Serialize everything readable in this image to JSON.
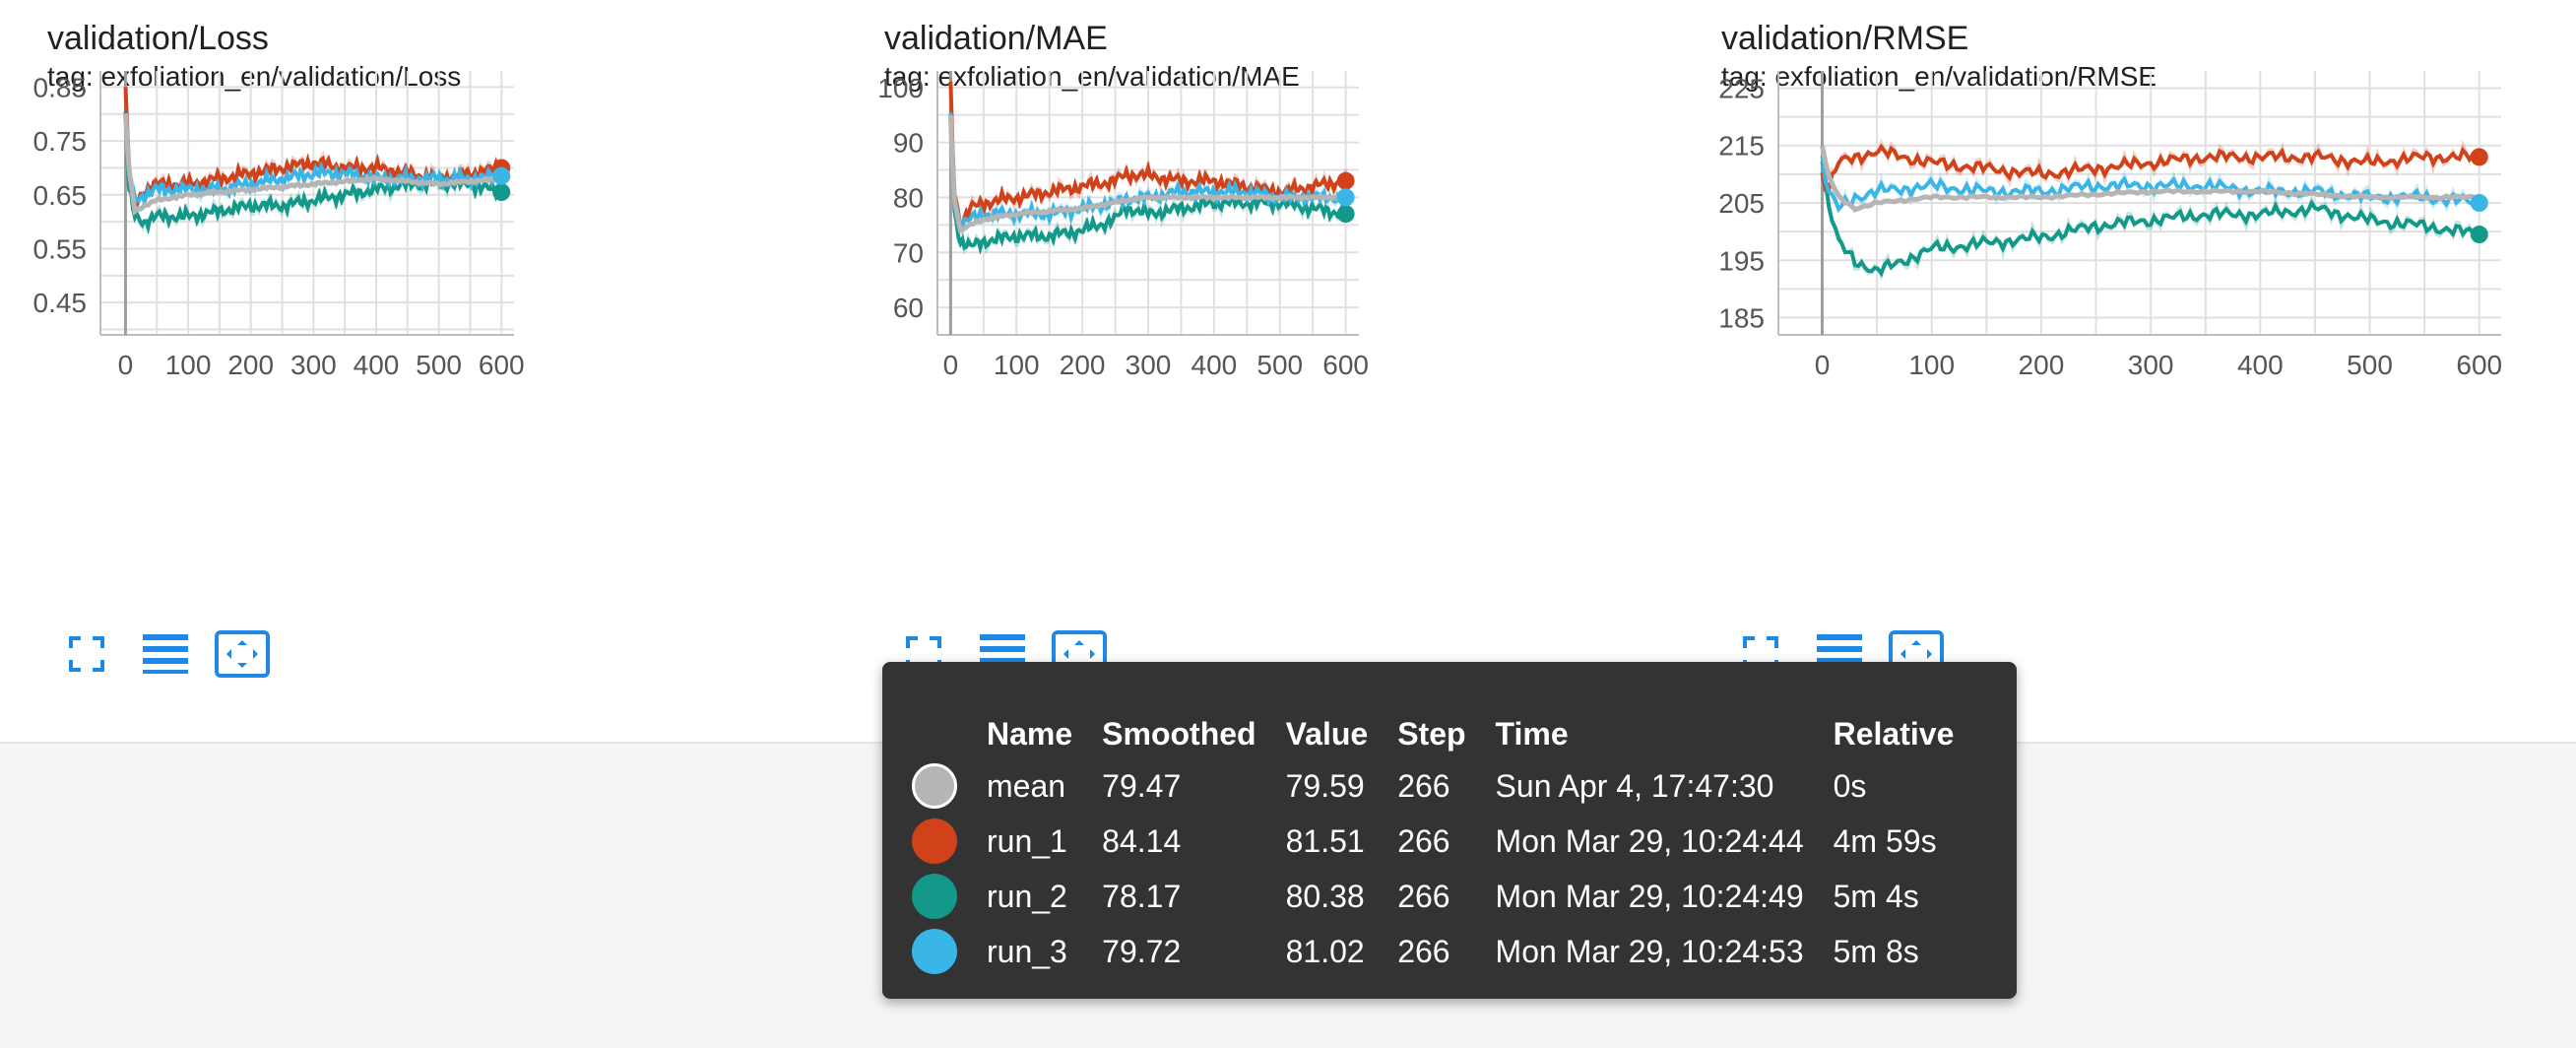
{
  "colors": {
    "mean": "#b5b5b5",
    "run_1": "#d1421b",
    "run_2": "#13998a",
    "run_3": "#3ab5e7",
    "accent": "#1e88e5"
  },
  "toolbar_icons": [
    "fullscreen-icon",
    "data-list-icon",
    "fit-domain-icon"
  ],
  "chart_data": [
    {
      "type": "line",
      "title": "validation/Loss",
      "tag": "tag: exfoliation_en/validation/Loss",
      "xlim": [
        -40,
        620
      ],
      "ylim": [
        0.39,
        0.88
      ],
      "xticks": [
        0,
        100,
        200,
        300,
        400,
        500,
        600
      ],
      "xtick_labels": [
        "0",
        "100",
        "200",
        "300",
        "400",
        "500",
        "600"
      ],
      "yticks": [
        0.85,
        0.75,
        0.65,
        0.55,
        0.45
      ],
      "ytick_labels": [
        "0.85",
        "0.75",
        "0.65",
        "0.55",
        "0.45"
      ],
      "grid": true,
      "series": [
        {
          "name": "mean",
          "x": [
            0,
            5,
            15,
            30,
            50,
            100,
            200,
            300,
            400,
            500,
            600
          ],
          "y": [
            0.8,
            0.7,
            0.62,
            0.63,
            0.64,
            0.65,
            0.66,
            0.67,
            0.68,
            0.67,
            0.68
          ]
        },
        {
          "name": "run_1",
          "x": [
            0,
            5,
            15,
            30,
            50,
            100,
            150,
            200,
            250,
            300,
            350,
            400,
            450,
            500,
            550,
            600
          ],
          "y": [
            0.85,
            0.7,
            0.63,
            0.66,
            0.67,
            0.67,
            0.68,
            0.69,
            0.7,
            0.71,
            0.7,
            0.7,
            0.69,
            0.68,
            0.69,
            0.7
          ]
        },
        {
          "name": "run_2",
          "x": [
            0,
            5,
            15,
            30,
            50,
            100,
            150,
            200,
            250,
            300,
            350,
            400,
            450,
            500,
            550,
            600
          ],
          "y": [
            0.8,
            0.66,
            0.61,
            0.6,
            0.61,
            0.61,
            0.62,
            0.63,
            0.63,
            0.64,
            0.65,
            0.66,
            0.67,
            0.67,
            0.67,
            0.655
          ]
        },
        {
          "name": "run_3",
          "x": [
            0,
            5,
            15,
            30,
            50,
            100,
            150,
            200,
            250,
            300,
            350,
            400,
            450,
            500,
            550,
            600
          ],
          "y": [
            0.8,
            0.69,
            0.64,
            0.65,
            0.66,
            0.66,
            0.66,
            0.67,
            0.68,
            0.69,
            0.69,
            0.68,
            0.68,
            0.68,
            0.68,
            0.685
          ]
        }
      ]
    },
    {
      "type": "line",
      "title": "validation/MAE",
      "tag": "tag: exfoliation_en/validation/MAE",
      "xlim": [
        -20,
        620
      ],
      "ylim": [
        55,
        103
      ],
      "xticks": [
        0,
        100,
        200,
        300,
        400,
        500,
        600
      ],
      "xtick_labels": [
        "0",
        "100",
        "200",
        "300",
        "400",
        "500",
        "600"
      ],
      "yticks": [
        100,
        90,
        80,
        70,
        60
      ],
      "ytick_labels": [
        "100",
        "90",
        "80",
        "70",
        "60"
      ],
      "grid": true,
      "series": [
        {
          "name": "mean",
          "x": [
            0,
            5,
            15,
            30,
            50,
            100,
            200,
            266,
            300,
            400,
            500,
            600
          ],
          "y": [
            95,
            80,
            74,
            75,
            76,
            77,
            78,
            79.47,
            80,
            80,
            80,
            80
          ]
        },
        {
          "name": "run_1",
          "x": [
            0,
            5,
            15,
            30,
            50,
            100,
            150,
            200,
            250,
            266,
            300,
            350,
            400,
            450,
            500,
            550,
            600
          ],
          "y": [
            100,
            82,
            75,
            78,
            79,
            80,
            81,
            82,
            83,
            84.14,
            84,
            83,
            83,
            82,
            81,
            82,
            83
          ]
        },
        {
          "name": "run_2",
          "x": [
            0,
            5,
            15,
            30,
            50,
            100,
            150,
            200,
            250,
            266,
            300,
            350,
            400,
            450,
            500,
            550,
            600
          ],
          "y": [
            95,
            78,
            72,
            71,
            72,
            73,
            73,
            74,
            76,
            78.17,
            77,
            78,
            79,
            79,
            79,
            78,
            77
          ]
        },
        {
          "name": "run_3",
          "x": [
            0,
            5,
            15,
            30,
            50,
            100,
            150,
            200,
            250,
            266,
            300,
            350,
            400,
            450,
            500,
            550,
            600
          ],
          "y": [
            95,
            80,
            75,
            76,
            77,
            77,
            77,
            78,
            79,
            79.72,
            80,
            81,
            81,
            81,
            80,
            80,
            80
          ]
        }
      ]
    },
    {
      "type": "line",
      "title": "validation/RMSE",
      "tag": "tag: exfoliation_en/validation/RMSE",
      "xlim": [
        -40,
        620
      ],
      "ylim": [
        182,
        228
      ],
      "xticks": [
        0,
        100,
        200,
        300,
        400,
        500,
        600
      ],
      "xtick_labels": [
        "0",
        "100",
        "200",
        "300",
        "400",
        "500",
        "600"
      ],
      "yticks": [
        225,
        215,
        205,
        195,
        185
      ],
      "ytick_labels": [
        "225",
        "215",
        "205",
        "195",
        "185"
      ],
      "grid": true,
      "series": [
        {
          "name": "mean",
          "x": [
            0,
            5,
            15,
            30,
            50,
            100,
            200,
            300,
            400,
            500,
            600
          ],
          "y": [
            215,
            210,
            206,
            204,
            205,
            206,
            206,
            207,
            207,
            206,
            206
          ]
        },
        {
          "name": "run_1",
          "x": [
            0,
            5,
            15,
            30,
            50,
            100,
            150,
            200,
            250,
            300,
            350,
            400,
            450,
            500,
            550,
            600
          ],
          "y": [
            210,
            207,
            212,
            213,
            214,
            212,
            211,
            210,
            211,
            212,
            213,
            213,
            213,
            212,
            213,
            213
          ]
        },
        {
          "name": "run_2",
          "x": [
            0,
            5,
            15,
            30,
            50,
            100,
            150,
            200,
            250,
            300,
            350,
            400,
            450,
            500,
            550,
            600
          ],
          "y": [
            213,
            205,
            198,
            195,
            193,
            197,
            198,
            199,
            201,
            202,
            203,
            203,
            204,
            202,
            201,
            199.5
          ]
        },
        {
          "name": "run_3",
          "x": [
            0,
            5,
            15,
            30,
            50,
            100,
            150,
            200,
            250,
            300,
            350,
            400,
            450,
            500,
            550,
            600
          ],
          "y": [
            213,
            207,
            204,
            206,
            207,
            208,
            207,
            207,
            208,
            208,
            208,
            207,
            207,
            206,
            206,
            205
          ]
        }
      ]
    }
  ],
  "tooltip": {
    "headers": [
      "Name",
      "Smoothed",
      "Value",
      "Step",
      "Time",
      "Relative"
    ],
    "rows": [
      {
        "name": "mean",
        "smoothed": "79.47",
        "value": "79.59",
        "step": "266",
        "time": "Sun Apr 4, 17:47:30",
        "relative": "0s"
      },
      {
        "name": "run_1",
        "smoothed": "84.14",
        "value": "81.51",
        "step": "266",
        "time": "Mon Mar 29, 10:24:44",
        "relative": "4m 59s"
      },
      {
        "name": "run_2",
        "smoothed": "78.17",
        "value": "80.38",
        "step": "266",
        "time": "Mon Mar 29, 10:24:49",
        "relative": "5m 4s"
      },
      {
        "name": "run_3",
        "smoothed": "79.72",
        "value": "81.02",
        "step": "266",
        "time": "Mon Mar 29, 10:24:53",
        "relative": "5m 8s"
      }
    ]
  }
}
